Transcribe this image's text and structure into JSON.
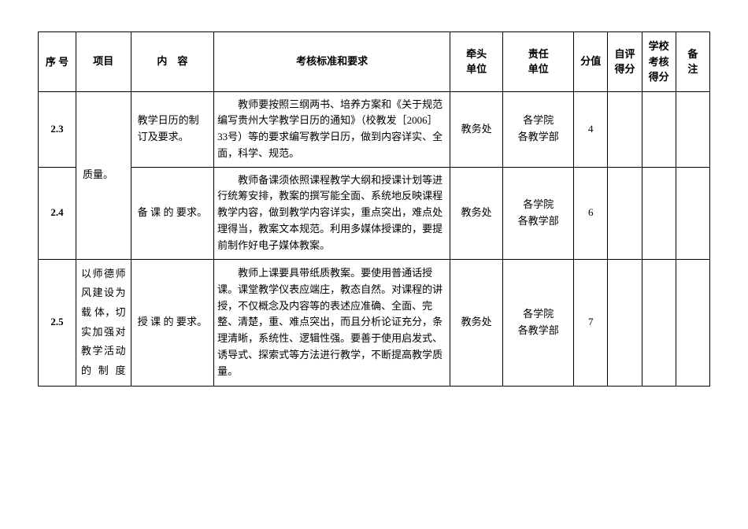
{
  "header": {
    "seq": "序 号",
    "project": "项目",
    "content": "内　容",
    "standard": "考核标准和要求",
    "lead_unit_l1": "牵头",
    "lead_unit_l2": "单位",
    "resp_unit_l1": "责任",
    "resp_unit_l2": "单位",
    "score": "分值",
    "self_score_l1": "自评",
    "self_score_l2": "得分",
    "school_score_l1": "学校",
    "school_score_l2": "考核",
    "school_score_l3": "得分",
    "remark_l1": "备",
    "remark_l2": "注"
  },
  "project_col_merged": "质量。",
  "project_25": "以师德师风建设为载 体，切实加强对教学活动的制度",
  "rows": [
    {
      "seq": "2.3",
      "content": "教学日历的制订及要求。",
      "standard": "教师要按照三纲两书、培养方案和《关于规范编写贵州大学教学日历的通知》（校教发［2006］33号）等的要求编写教学日历，做到内容详实、全面，科学、规范。",
      "lead": "教务处",
      "resp_l1": "各学院",
      "resp_l2": "各教学部",
      "score": "4",
      "self": "",
      "school": "",
      "remark": ""
    },
    {
      "seq": "2.4",
      "content": "备 课 的 要求。",
      "standard": "教师备课须依照课程教学大纲和授课计划等进行统筹安排，教案的撰写能全面、系统地反映课程教学内容，做到教学内容详实，重点突出，难点处理得当，教案文本规范。利用多媒体授课的，要提前制作好电子媒体教案。",
      "lead": "教务处",
      "resp_l1": "各学院",
      "resp_l2": "各教学部",
      "score": "6",
      "self": "",
      "school": "",
      "remark": ""
    },
    {
      "seq": "2.5",
      "content": "授 课 的 要求。",
      "standard": "教师上课要具带纸质教案。要使用普通话授课。课堂教学仪表应端庄，教态自然。对课程的讲授，不仅概念及内容等的表述应准确、全面、完整、清楚，重、难点突出，而且分析论证充分，条理清晰，系统性、逻辑性强。要善于使用启发式、诱导式、探索式等方法进行教学，不断提高教学质量。",
      "lead": "教务处",
      "resp_l1": "各学院",
      "resp_l2": "各教学部",
      "score": "7",
      "self": "",
      "school": "",
      "remark": ""
    }
  ]
}
